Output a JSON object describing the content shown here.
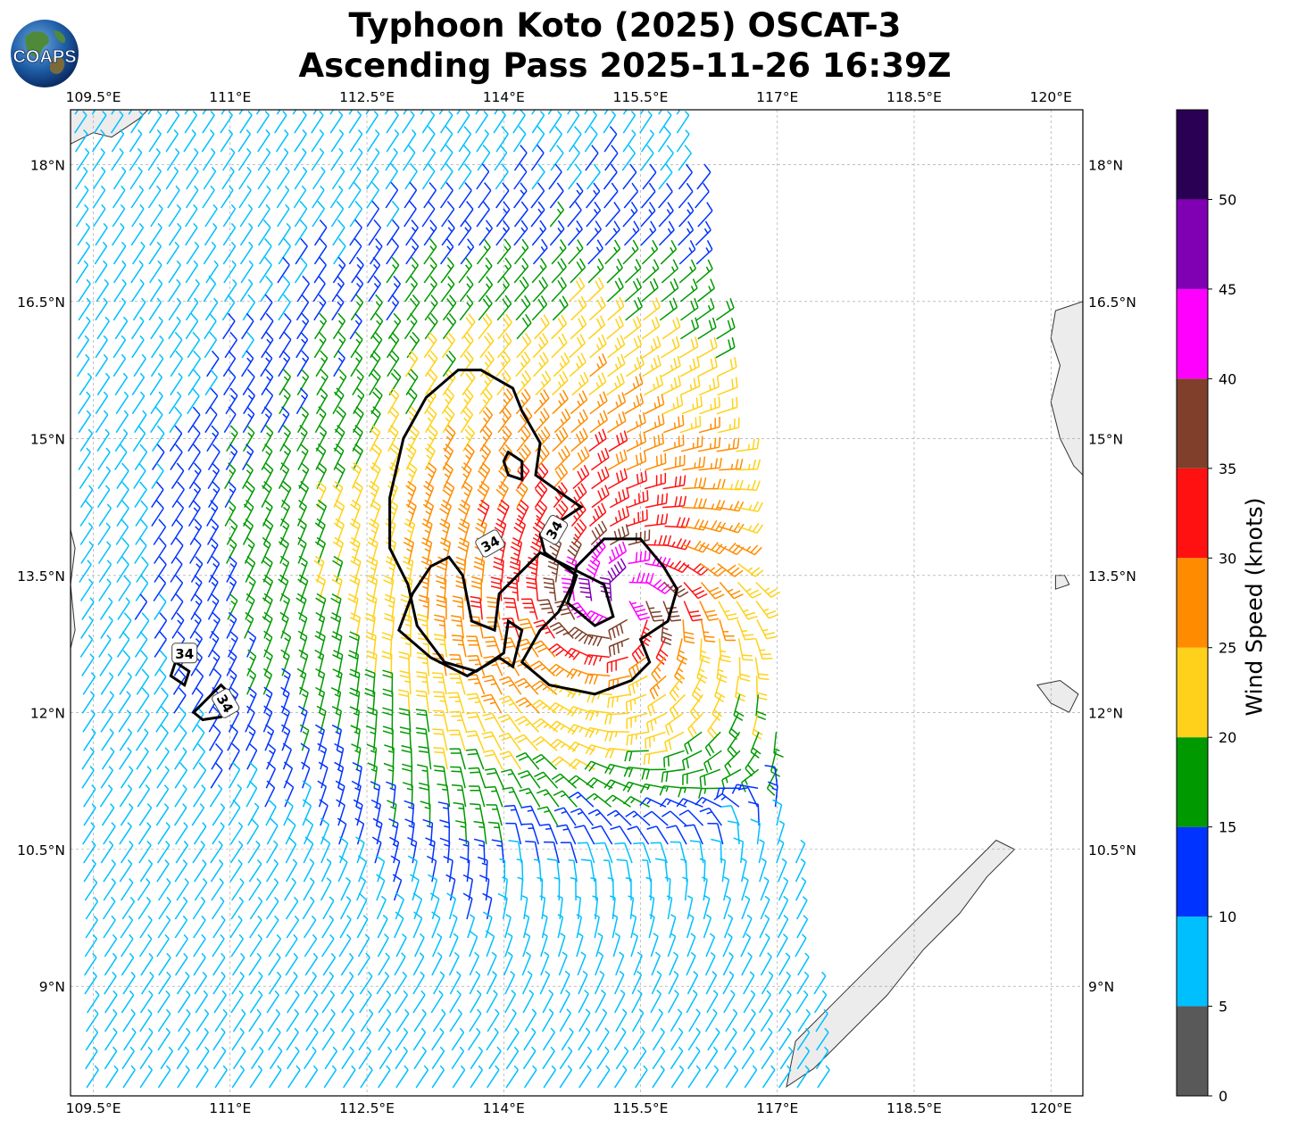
{
  "title": {
    "line1": "Typhoon Koto (2025) OSCAT-3",
    "line2": "Ascending Pass 2025-11-26 16:39Z"
  },
  "logo": {
    "text": "COAPS"
  },
  "map": {
    "lon_ticks": [
      "109.5°E",
      "111°E",
      "112.5°E",
      "114°E",
      "115.5°E",
      "117°E",
      "118.5°E",
      "120°E"
    ],
    "lat_ticks": [
      "18°N",
      "16.5°N",
      "15°N",
      "13.5°N",
      "12°N",
      "10.5°N",
      "9°N"
    ],
    "lon_range": [
      109.25,
      120.35
    ],
    "lat_range": [
      7.8,
      18.6
    ],
    "storm_center": {
      "lon": 115.3,
      "lat": 13.2
    },
    "contour_label": "34",
    "swath_east_edge_lon": [
      116.0,
      117.6
    ]
  },
  "colorbar": {
    "title": "Wind Speed (knots)",
    "tick_labels": [
      "0",
      "5",
      "10",
      "15",
      "20",
      "25",
      "30",
      "35",
      "40",
      "45",
      "50"
    ],
    "bins": [
      {
        "min": 0,
        "max": 5,
        "color": "#595959"
      },
      {
        "min": 5,
        "max": 10,
        "color": "#00bfff"
      },
      {
        "min": 10,
        "max": 15,
        "color": "#0033ff"
      },
      {
        "min": 15,
        "max": 20,
        "color": "#009900"
      },
      {
        "min": 20,
        "max": 25,
        "color": "#ffd11a"
      },
      {
        "min": 25,
        "max": 30,
        "color": "#ff8c00"
      },
      {
        "min": 30,
        "max": 35,
        "color": "#ff1111"
      },
      {
        "min": 35,
        "max": 40,
        "color": "#7f3f2a"
      },
      {
        "min": 40,
        "max": 45,
        "color": "#ff00ff"
      },
      {
        "min": 45,
        "max": 50,
        "color": "#8000b3"
      },
      {
        "min": 50,
        "max": 55,
        "color": "#2a0055"
      }
    ]
  },
  "wind_colors": {
    "calm": "#595959",
    "lt10": "#00bfff",
    "lt15": "#0033ff",
    "lt20": "#009900",
    "lt25": "#ffd11a",
    "lt30": "#ff8c00",
    "lt35": "#dd1111",
    "lt40": "#6b3426",
    "lt45": "#dd00dd",
    "lt50": "#8000b3"
  }
}
